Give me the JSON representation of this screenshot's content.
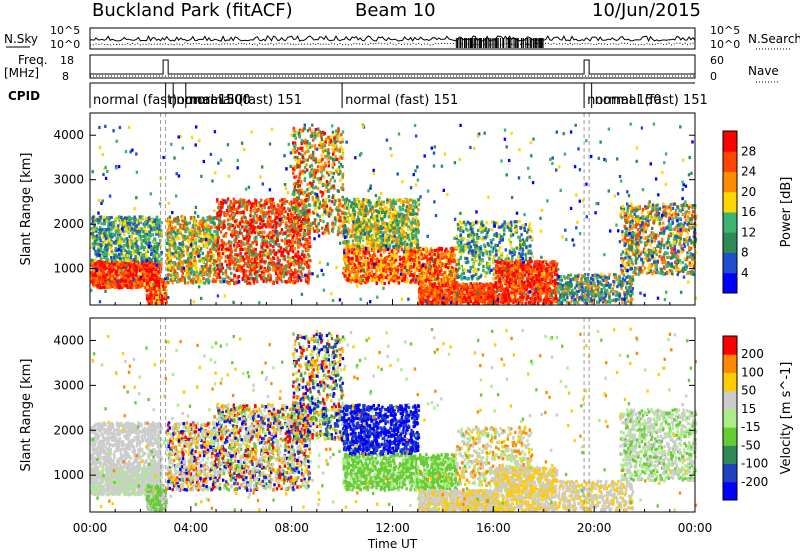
{
  "header": {
    "station": "Buckland Park (fitACF)",
    "beam": "Beam 10",
    "date": "10/Jun/2015"
  },
  "side_labels": {
    "nsky": "N.Sky",
    "freq": "Freq.",
    "freq_unit": "[MHz]",
    "cpid": "CPID",
    "nsearch": "N.Search",
    "nave": "Nave",
    "nsky_ticks": [
      "10^5",
      "10^0"
    ],
    "freq_ticks": [
      "18",
      "8"
    ],
    "nave_ticks": [
      "60",
      "0"
    ],
    "nsearch_ticks": [
      "10^5",
      "10^0"
    ]
  },
  "cpid_labels": [
    {
      "text": "normal (fast)",
      "start_h": 0.0
    },
    {
      "text": "normal 150",
      "start_h": 3.0
    },
    {
      "text": "normal 500",
      "start_h": 3.3
    },
    {
      "text": "normal (fast) 151",
      "start_h": 3.8
    },
    {
      "text": "normal (fast) 151",
      "start_h": 10.0
    },
    {
      "text": "normal 150",
      "start_h": 19.6
    },
    {
      "text": "normal (fast) 151",
      "start_h": 19.9
    }
  ],
  "chart_data": [
    {
      "type": "heatmap",
      "name": "power",
      "ylabel": "Slant Range [km]",
      "xlabel": "Time UT",
      "xlim": [
        0,
        24
      ],
      "ylim": [
        180,
        4500
      ],
      "yticks": [
        1000,
        2000,
        3000,
        4000
      ],
      "xticks": [
        "00:00",
        "04:00",
        "08:00",
        "12:00",
        "16:00",
        "20:00",
        "00:00"
      ],
      "colorbar": {
        "label": "Power [dB]",
        "ticks": [
          "4",
          "8",
          "12",
          "16",
          "20",
          "24",
          "28"
        ],
        "colors": [
          "#0000ff",
          "#1f4fd0",
          "#2e8b57",
          "#3cb371",
          "#ffd700",
          "#ff8c00",
          "#ff4500",
          "#ff0000"
        ]
      }
    },
    {
      "type": "heatmap",
      "name": "velocity",
      "ylabel": "Slant Range [km]",
      "xlabel": "Time UT",
      "xlim": [
        0,
        24
      ],
      "ylim": [
        180,
        4500
      ],
      "yticks": [
        1000,
        2000,
        3000,
        4000
      ],
      "xticks": [
        "00:00",
        "04:00",
        "08:00",
        "12:00",
        "16:00",
        "20:00",
        "00:00"
      ],
      "colorbar": {
        "label": "Velocity [m s^-1]",
        "ticks": [
          "200",
          "100",
          "50",
          "15",
          "-15",
          "-50",
          "-100",
          "-200"
        ],
        "colors": [
          "#0000ff",
          "#2040c0",
          "#2e8b57",
          "#66cc33",
          "#aaee88",
          "#cccccc",
          "#ffcc00",
          "#ff8800",
          "#ff0000"
        ]
      }
    }
  ],
  "time_axis_label": "Time UT"
}
